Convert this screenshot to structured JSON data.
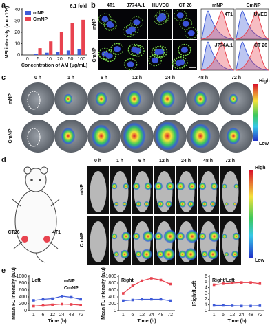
{
  "panels": {
    "a": "a",
    "b": "b",
    "c": "c",
    "d": "d",
    "e": "e"
  },
  "b": {
    "columns": [
      "4T1",
      "J774A.1",
      "HUVEC",
      "CT 26"
    ],
    "rows": [
      "mNP",
      "CmNP"
    ],
    "hist_legend": [
      "mNP",
      "CmNP"
    ],
    "hist_labels": [
      "4T1",
      "HUVEC",
      "J774A.1",
      "CT 26"
    ]
  },
  "c": {
    "times": [
      "0 h",
      "1 h",
      "6 h",
      "12 h",
      "24 h",
      "48 h",
      "72 h"
    ],
    "rows": [
      "mNP",
      "CmNP"
    ],
    "colorbar": [
      "High",
      "Low"
    ]
  },
  "d": {
    "times": [
      "0 h",
      "1 h",
      "6 h",
      "12 h",
      "24 h",
      "48 h",
      "72 h"
    ],
    "rows": [
      "mNP",
      "CmNP"
    ],
    "sites": [
      "CT26",
      "4T1"
    ],
    "colorbar": [
      "High",
      "Low"
    ]
  },
  "chart_data": [
    {
      "type": "bar",
      "ylabel": "MFI intensity (a.u.x10⁴)",
      "xlabel": "Concentration of AM (μg/mL)",
      "annotation": "6.1 fold",
      "categories": [
        "0",
        "5",
        "10",
        "20",
        "50",
        "100"
      ],
      "series": [
        {
          "name": "mNP",
          "color": "#3f5bd8",
          "values": [
            0,
            1,
            2,
            3,
            4,
            5
          ]
        },
        {
          "name": "CmNP",
          "color": "#e8434f",
          "values": [
            0,
            6,
            12,
            20,
            28,
            31
          ]
        }
      ],
      "ylim": [
        0,
        40
      ],
      "yticks": [
        0,
        10,
        20,
        30,
        40
      ]
    },
    {
      "type": "line",
      "title": "Left",
      "ylabel": "Mean FL intensity (a.u)",
      "xlabel": "Time (h)",
      "categories": [
        "1",
        "6",
        "12",
        "24",
        "48",
        "72"
      ],
      "series": [
        {
          "name": "mNP",
          "color": "#3f5bd8",
          "values": [
            300,
            330,
            350,
            420,
            390,
            330
          ]
        },
        {
          "name": "CmNP",
          "color": "#e8434f",
          "values": [
            130,
            150,
            170,
            190,
            180,
            160
          ]
        }
      ],
      "ylim": [
        0,
        1000
      ],
      "yticks": [
        0,
        200,
        400,
        600,
        800,
        1000
      ]
    },
    {
      "type": "line",
      "title": "Right",
      "ylabel": "Mean FL intensity (a.u)",
      "xlabel": "Time (h)",
      "categories": [
        "1",
        "6",
        "12",
        "24",
        "48",
        "72"
      ],
      "series": [
        {
          "color": "#3f5bd8",
          "values": [
            290,
            310,
            330,
            330,
            330,
            290
          ]
        },
        {
          "color": "#e8434f",
          "values": [
            500,
            720,
            870,
            940,
            890,
            770
          ]
        }
      ],
      "ylim": [
        0,
        1000
      ],
      "yticks": [
        0,
        200,
        400,
        600,
        800,
        1000
      ]
    },
    {
      "type": "line",
      "title": "Right/Left",
      "ylabel": "IRight/ILeft",
      "xlabel": "Time (h)",
      "categories": [
        "1",
        "6",
        "12",
        "24",
        "48",
        "72"
      ],
      "series": [
        {
          "color": "#e8434f",
          "values": [
            4.5,
            4.7,
            4.8,
            4.9,
            4.9,
            4.7
          ]
        },
        {
          "color": "#3f5bd8",
          "values": [
            0.9,
            0.9,
            0.85,
            0.8,
            0.8,
            0.85
          ]
        }
      ],
      "ylim": [
        0,
        6
      ],
      "yticks": [
        0,
        1,
        2,
        3,
        4,
        5,
        6
      ]
    }
  ]
}
